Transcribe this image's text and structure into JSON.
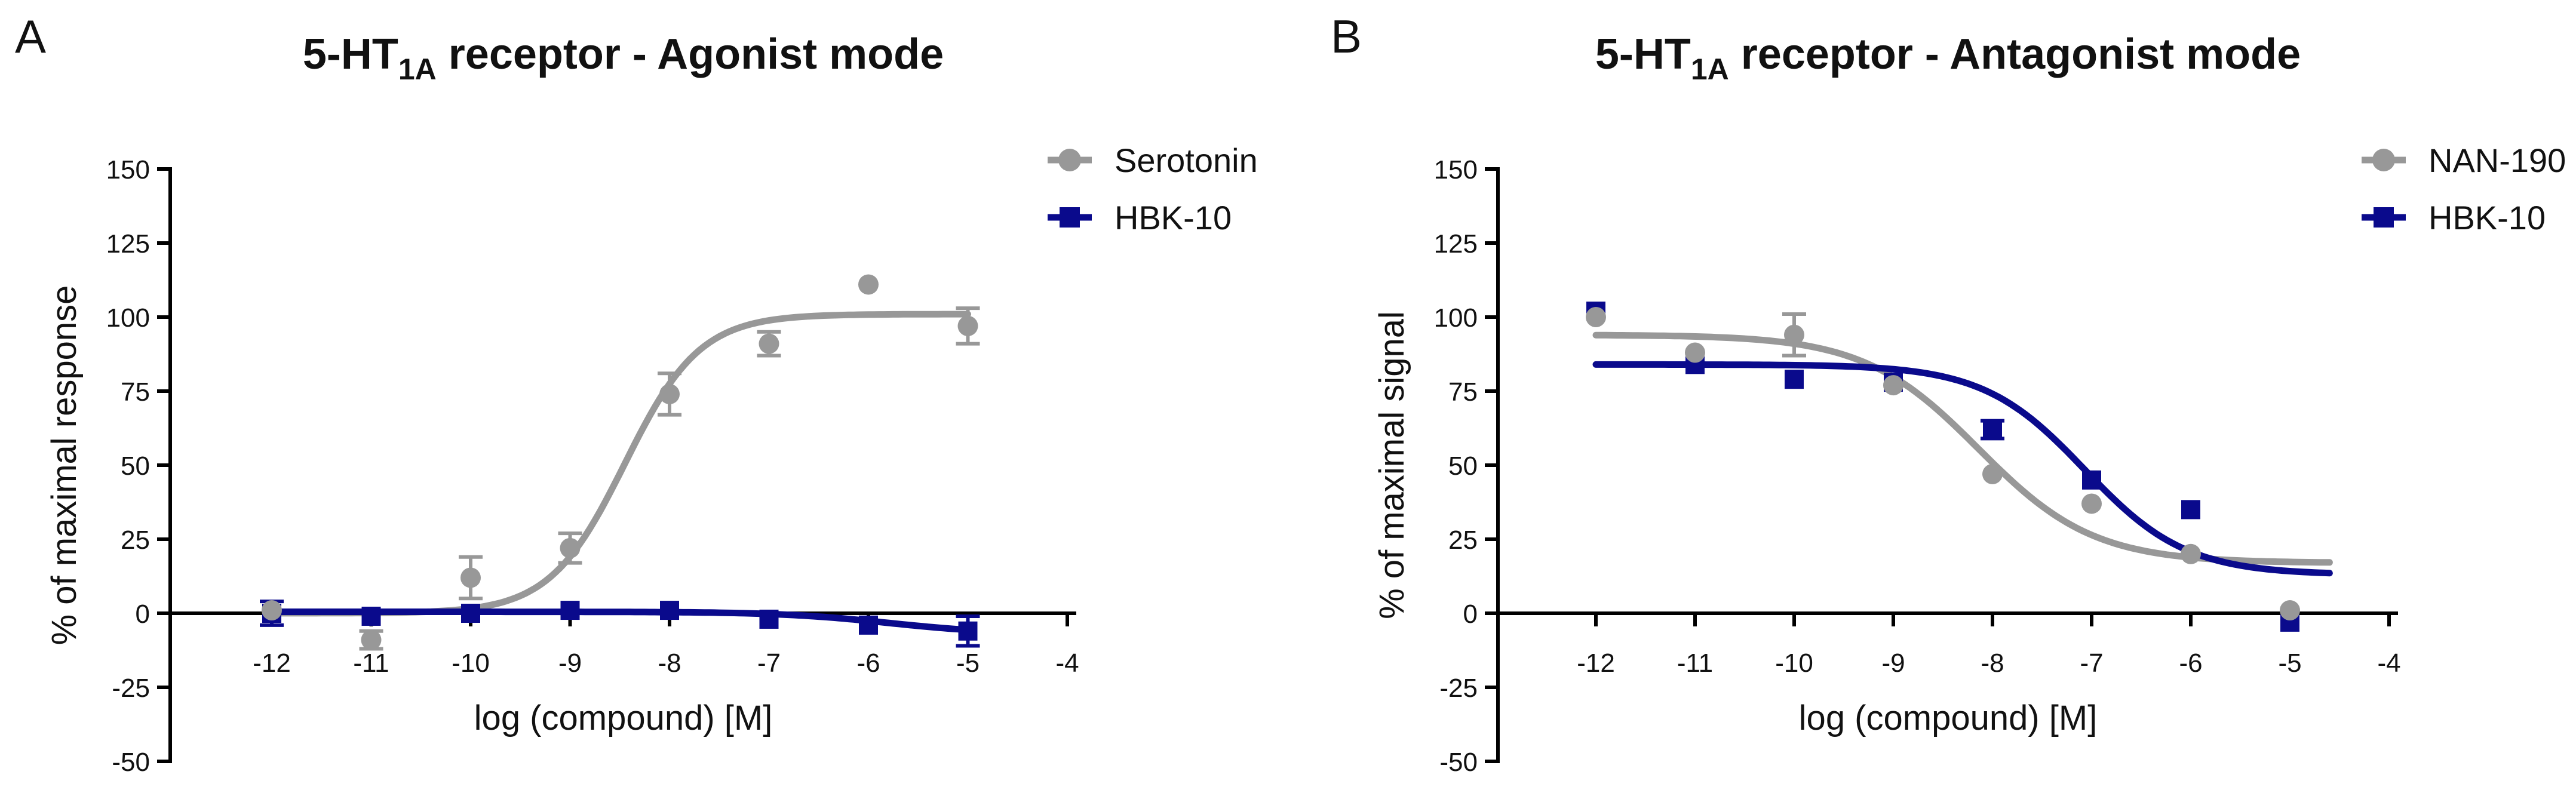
{
  "figure": {
    "background": "#ffffff",
    "axis_color": "#000000",
    "gray_series_color": "#989898",
    "navy_series_color": "#0a0a8c"
  },
  "chart_data": [
    {
      "type": "scatter",
      "panel_label": "A",
      "title": "5-HT1A receptor - Agonist mode",
      "title_parts": {
        "pre": "5-HT",
        "sub": "1A",
        "post": " receptor - Agonist mode"
      },
      "xlabel": "log (compound) [M]",
      "ylabel": "% of maximal response",
      "x_ticks": [
        -12,
        -11,
        -10,
        -9,
        -8,
        -7,
        -6,
        -5,
        -4
      ],
      "y_ticks": [
        150,
        125,
        100,
        75,
        50,
        25,
        0,
        -25,
        -50
      ],
      "xlim": [
        -12,
        -4
      ],
      "ylim": [
        -50,
        150
      ],
      "grid": false,
      "legend_position": "right-top",
      "series": [
        {
          "name": "Serotonin",
          "marker": "circle",
          "color": "#989898",
          "x": [
            -12,
            -11,
            -10,
            -9,
            -8,
            -7,
            -6,
            -5
          ],
          "y": [
            1,
            -9,
            12,
            22,
            74,
            91,
            111,
            97
          ],
          "err": [
            0,
            3,
            7,
            5,
            7,
            4,
            0,
            6
          ],
          "fit": {
            "shape": "sigmoid",
            "direction": "asc",
            "top": 101,
            "bottom": 0,
            "logx50": -8.45,
            "hill": 1.15,
            "range": [
              -12,
              -5
            ]
          }
        },
        {
          "name": "HBK-10",
          "marker": "square",
          "color": "#0a0a8c",
          "x": [
            -12,
            -11,
            -10,
            -9,
            -8,
            -7,
            -6,
            -5
          ],
          "y": [
            0,
            -1,
            0,
            1,
            1,
            -2,
            -4,
            -6
          ],
          "err": [
            4,
            0,
            0,
            0,
            0,
            0,
            0,
            5
          ],
          "fit": {
            "shape": "sigmoid",
            "direction": "desc",
            "top": 0.5,
            "bottom": -7,
            "logx50": -5.8,
            "hill": 0.8,
            "range": [
              -12,
              -5
            ]
          }
        }
      ]
    },
    {
      "type": "scatter",
      "panel_label": "B",
      "title": "5-HT1A receptor - Antagonist mode",
      "title_parts": {
        "pre": "5-HT",
        "sub": "1A",
        "post": " receptor - Antagonist mode"
      },
      "xlabel": "log (compound) [M]",
      "ylabel": "% of maximal signal",
      "x_ticks": [
        -12,
        -11,
        -10,
        -9,
        -8,
        -7,
        -6,
        -5,
        -4
      ],
      "y_ticks": [
        150,
        125,
        100,
        75,
        50,
        25,
        0,
        -25,
        -50
      ],
      "xlim": [
        -12,
        -4
      ],
      "ylim": [
        -50,
        150
      ],
      "grid": false,
      "legend_position": "right-top",
      "series": [
        {
          "name": "NAN-190",
          "marker": "circle",
          "color": "#989898",
          "x": [
            -12,
            -11,
            -10,
            -9,
            -8,
            -7,
            -6,
            -5
          ],
          "y": [
            100,
            88,
            94,
            77,
            47,
            37,
            20,
            1
          ],
          "err": [
            0,
            0,
            7,
            0,
            0,
            0,
            0,
            0
          ],
          "fit": {
            "shape": "sigmoid",
            "direction": "desc",
            "top": 94,
            "bottom": 17,
            "logx50": -8.14,
            "hill": 0.75,
            "range": [
              -12,
              -4.6
            ]
          }
        },
        {
          "name": "HBK-10",
          "marker": "square",
          "color": "#0a0a8c",
          "x": [
            -12,
            -11,
            -10,
            -9,
            -8,
            -7,
            -6,
            -5
          ],
          "y": [
            102,
            84,
            79,
            78,
            62,
            45,
            35,
            -3
          ],
          "err": [
            0,
            0,
            0,
            0,
            3,
            0,
            0,
            0
          ],
          "fit": {
            "shape": "sigmoid",
            "direction": "desc",
            "top": 84,
            "bottom": 13,
            "logx50": -7.07,
            "hill": 0.85,
            "range": [
              -12,
              -4.6
            ]
          }
        }
      ]
    }
  ]
}
